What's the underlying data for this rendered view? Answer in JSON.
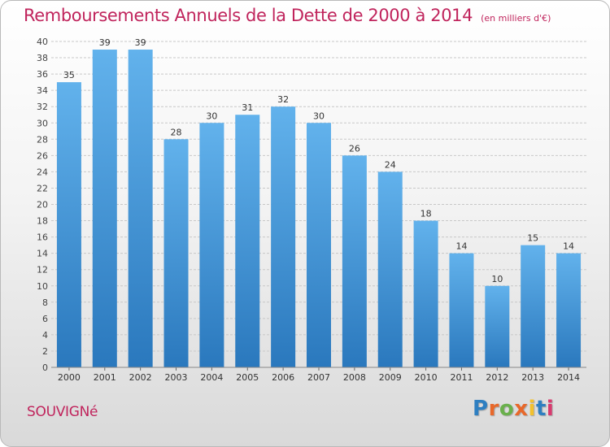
{
  "chart_data": {
    "type": "bar",
    "title": "Remboursements Annuels de la Dette de 2000 à 2014",
    "unit": "(en milliers d'€)",
    "categories": [
      "2000",
      "2001",
      "2002",
      "2003",
      "2004",
      "2005",
      "2006",
      "2007",
      "2008",
      "2009",
      "2010",
      "2011",
      "2012",
      "2013",
      "2014"
    ],
    "values": [
      35,
      39,
      39,
      28,
      30,
      31,
      32,
      30,
      26,
      24,
      18,
      14,
      10,
      15,
      14
    ],
    "ylim": [
      0,
      40
    ],
    "ytick_step": 2,
    "grid": true,
    "xlabel": "",
    "ylabel": ""
  },
  "commune": "SOUVIGNé",
  "logo": {
    "letters": [
      "P",
      "r",
      "o",
      "x",
      "i",
      "t",
      "i"
    ],
    "colors": [
      "#2e7fc1",
      "#e8682a",
      "#6ab04c",
      "#e8682a",
      "#f2c12e",
      "#2e7fc1",
      "#d93a6f"
    ]
  },
  "colors": {
    "title": "#c0245c",
    "bar_top": "#62b2ec",
    "bar_bottom": "#2a78bd",
    "grid": "#c8c8c8"
  }
}
